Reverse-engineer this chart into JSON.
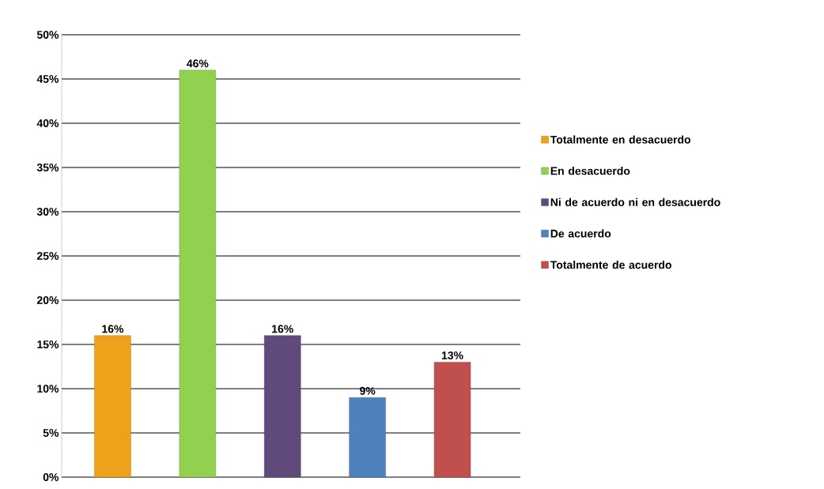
{
  "chart_data": {
    "type": "bar",
    "categories": [
      null,
      null,
      null,
      null,
      null
    ],
    "series": [
      {
        "name": "Totalmente en desacuerdo",
        "color": "#eea21b",
        "values": [
          16,
          null,
          null,
          null,
          null
        ],
        "value_labels": [
          "16%",
          null,
          null,
          null,
          null
        ]
      },
      {
        "name": "En desacuerdo",
        "color": "#92d050",
        "values": [
          null,
          46,
          null,
          null,
          null
        ],
        "value_labels": [
          null,
          "46%",
          null,
          null,
          null
        ]
      },
      {
        "name": "Ni de acuerdo ni en desacuerdo",
        "color": "#604a7b",
        "values": [
          null,
          null,
          16,
          null,
          null
        ],
        "value_labels": [
          null,
          null,
          "16%",
          null,
          null
        ]
      },
      {
        "name": "De acuerdo",
        "color": "#4f81bd",
        "values": [
          null,
          null,
          null,
          9,
          null
        ],
        "value_labels": [
          null,
          null,
          null,
          "9%",
          null
        ]
      },
      {
        "name": "Totalmente de acuerdo",
        "color": "#c0504d",
        "values": [
          null,
          null,
          null,
          null,
          13
        ],
        "value_labels": [
          null,
          null,
          null,
          null,
          "13%"
        ]
      }
    ],
    "ylim": [
      0,
      50
    ],
    "yticks": [
      {
        "value": 0,
        "label": "0%"
      },
      {
        "value": 5,
        "label": "5%"
      },
      {
        "value": 10,
        "label": "10%"
      },
      {
        "value": 15,
        "label": "15%"
      },
      {
        "value": 20,
        "label": "20%"
      },
      {
        "value": 25,
        "label": "25%"
      },
      {
        "value": 30,
        "label": "30%"
      },
      {
        "value": 35,
        "label": "35%"
      },
      {
        "value": 40,
        "label": "40%"
      },
      {
        "value": 45,
        "label": "45%"
      },
      {
        "value": 50,
        "label": "50%"
      }
    ],
    "grid": "y",
    "legend": "right"
  }
}
